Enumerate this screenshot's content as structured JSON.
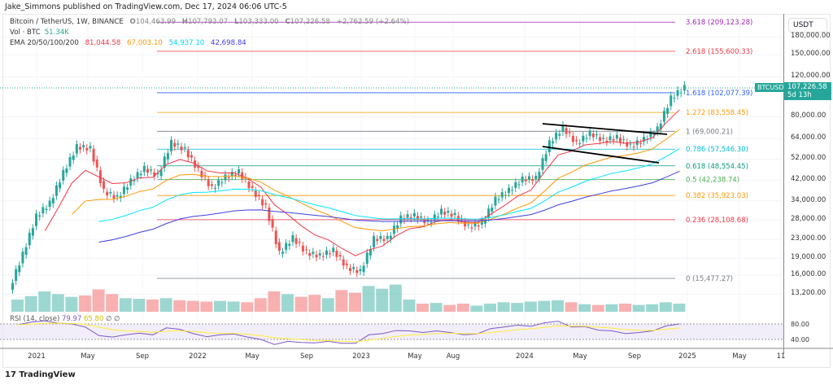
{
  "publisher": "Jake_Simmons published on TradingView.com, Dec 17, 2024 06:06 UTC-5",
  "legend": {
    "symbol": "Bitcoin / TetherUS, 1W, BINANCE",
    "o_label": "O",
    "o": "104,463.99",
    "h_label": "H",
    "h": "107,793.07",
    "l_label": "L",
    "l": "103,333.00",
    "c_label": "C",
    "c": "107,226.58",
    "change": "+2,762.59 (+2.64%)",
    "vol_label": "Vol · BTC",
    "vol": "51.34K",
    "ema_label": "EMA 20/50/100/200",
    "ema": [
      "81,044.58",
      "67,003.10",
      "54,937.10",
      "42,698.84"
    ]
  },
  "currency": "USDT",
  "price_tag": {
    "symbol": "BTCUSDT",
    "price": "107,226.58",
    "countdown": "5d 13h"
  },
  "rsi": {
    "label": "RSI (14, close)",
    "value": "79.97",
    "ma": "65.80",
    "extra": "∅ ∅",
    "ticks": [
      "80.00",
      "40.00"
    ]
  },
  "logo": "TradingView",
  "colors": {
    "up": "#26a69a",
    "down": "#ef5350",
    "ema20": "#f23645",
    "ema50": "#ff9800",
    "ema100": "#00e5ff",
    "ema200": "#3f3fe0",
    "rsi": "#7e57c2",
    "rsi_ma": "#ffeb3b"
  },
  "chart_data": {
    "type": "candlestick",
    "scale": "log",
    "price_ticks": [
      "180,000.00",
      "150,000.00",
      "120,000.00",
      "80,000.00",
      "64,000.00",
      "52,000.00",
      "42,000.00",
      "34,000.00",
      "28,000.00",
      "23,000.00",
      "19,000.00",
      "16,000.00",
      "13,200.00"
    ],
    "time_ticks": [
      "2021",
      "May",
      "Sep",
      "2022",
      "May",
      "Sep",
      "2023",
      "May",
      "Aug",
      "2024",
      "May",
      "Sep",
      "2025",
      "May",
      "11"
    ],
    "months": [
      "2020-11",
      "2020-12",
      "2021-01",
      "2021-02",
      "2021-03",
      "2021-04",
      "2021-05",
      "2021-06",
      "2021-07",
      "2021-08",
      "2021-09",
      "2021-10",
      "2021-11",
      "2021-12",
      "2022-01",
      "2022-02",
      "2022-03",
      "2022-04",
      "2022-05",
      "2022-06",
      "2022-07",
      "2022-08",
      "2022-09",
      "2022-10",
      "2022-11",
      "2022-12",
      "2023-01",
      "2023-02",
      "2023-03",
      "2023-04",
      "2023-05",
      "2023-06",
      "2023-07",
      "2023-08",
      "2023-09",
      "2023-10",
      "2023-11",
      "2023-12",
      "2024-01",
      "2024-02",
      "2024-03",
      "2024-04",
      "2024-05",
      "2024-06",
      "2024-07",
      "2024-08",
      "2024-09",
      "2024-10",
      "2024-11",
      "2024-12"
    ],
    "close": [
      19700,
      29000,
      33100,
      45200,
      58800,
      57700,
      37300,
      35000,
      41500,
      47100,
      43800,
      61300,
      57000,
      46200,
      38500,
      43200,
      45500,
      37700,
      31800,
      19900,
      23300,
      20000,
      19400,
      20500,
      17200,
      16500,
      23100,
      23100,
      28500,
      29200,
      27200,
      30500,
      29200,
      26000,
      27000,
      34500,
      37700,
      42300,
      42600,
      61100,
      71300,
      60700,
      67500,
      62700,
      64600,
      59000,
      63300,
      70300,
      96400,
      107226
    ],
    "volume_k": [
      180,
      230,
      300,
      260,
      220,
      240,
      330,
      260,
      200,
      190,
      180,
      200,
      170,
      160,
      150,
      160,
      150,
      140,
      200,
      300,
      260,
      220,
      250,
      200,
      320,
      280,
      380,
      340,
      400,
      180,
      120,
      130,
      100,
      120,
      90,
      120,
      140,
      130,
      150,
      160,
      170,
      140,
      110,
      100,
      110,
      120,
      100,
      110,
      140,
      120
    ],
    "rsi": [
      78,
      85,
      88,
      82,
      80,
      72,
      50,
      46,
      52,
      56,
      52,
      70,
      66,
      55,
      47,
      52,
      54,
      46,
      40,
      27,
      35,
      32,
      31,
      35,
      30,
      30,
      52,
      55,
      63,
      62,
      58,
      62,
      58,
      52,
      54,
      68,
      72,
      77,
      74,
      83,
      87,
      72,
      73,
      64,
      62,
      55,
      58,
      62,
      75,
      80
    ],
    "fib_levels": [
      {
        "label": "3.618 (209,123.28)",
        "price": 209123.28,
        "color": "#9c27b0"
      },
      {
        "label": "2.618 (155,600.33)",
        "price": 155600.33,
        "color": "#f23645"
      },
      {
        "label": "1.618 (102,077.39)",
        "price": 102077.39,
        "color": "#2962ff"
      },
      {
        "label": "1.272 (83,558.45)",
        "price": 83558.45,
        "color": "#ff9800"
      },
      {
        "label": "1 (69,000.21)",
        "price": 69000.21,
        "color": "#787b86"
      },
      {
        "label": "0.786 (57,546.30)",
        "price": 57546.3,
        "color": "#00bcd4"
      },
      {
        "label": "0.618 (48,554.45)",
        "price": 48554.45,
        "color": "#089981"
      },
      {
        "label": "0.5 (42,238.74)",
        "price": 42238.74,
        "color": "#4caf50"
      },
      {
        "label": "0.382 (35,923.03)",
        "price": 35923.03,
        "color": "#ff9800"
      },
      {
        "label": "0.236 (28,108.68)",
        "price": 28108.68,
        "color": "#f23645"
      },
      {
        "label": "0 (15,477.27)",
        "price": 15477.27,
        "color": "#787b86"
      }
    ],
    "channel": [
      {
        "from": [
          "2024-03",
          73800
        ],
        "to": [
          "2024-11",
          68000
        ]
      },
      {
        "from": [
          "2024-03",
          60000
        ],
        "to": [
          "2024-11",
          49000
        ]
      }
    ]
  }
}
